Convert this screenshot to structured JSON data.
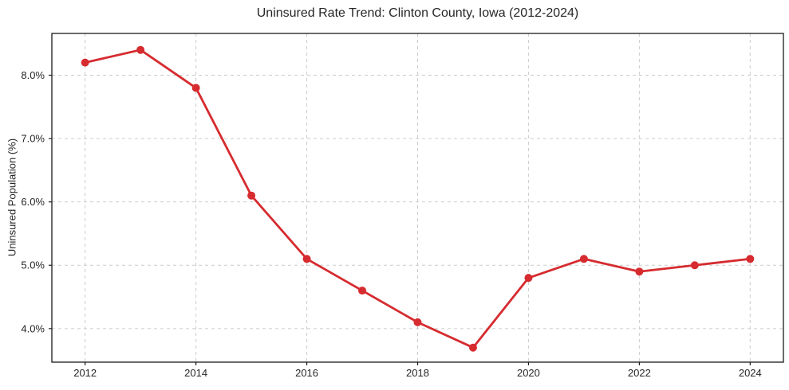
{
  "chart_data": {
    "type": "line",
    "title": "Uninsured Rate Trend: Clinton County, Iowa (2012-2024)",
    "ylabel": "Uninsured Population (%)",
    "xlabel": "",
    "x": [
      2012,
      2013,
      2014,
      2015,
      2016,
      2017,
      2018,
      2019,
      2020,
      2021,
      2022,
      2023,
      2024
    ],
    "series": [
      {
        "name": "Uninsured rate",
        "values": [
          8.2,
          8.4,
          7.8,
          6.1,
          5.1,
          4.6,
          4.1,
          3.7,
          4.8,
          5.1,
          4.9,
          5.0,
          5.1
        ]
      }
    ],
    "xlim": [
      2011.4,
      2024.6
    ],
    "ylim": [
      3.47,
      8.66
    ],
    "x_ticks": [
      2012,
      2014,
      2016,
      2018,
      2020,
      2022,
      2024
    ],
    "x_tick_labels": [
      "2012",
      "2014",
      "2016",
      "2018",
      "2020",
      "2022",
      "2024"
    ],
    "y_ticks": [
      4.0,
      5.0,
      6.0,
      7.0,
      8.0
    ],
    "y_tick_labels": [
      "4.0%",
      "5.0%",
      "6.0%",
      "7.0%",
      "8.0%"
    ],
    "grid": true,
    "grid_style": "dashed",
    "legend": "none",
    "line_color": "#d62b2f",
    "marker": "circle",
    "grid_color": "#cccccc",
    "axis_color": "#1a1a1a",
    "text_color": "#262626",
    "background_color": "#ffffff"
  }
}
